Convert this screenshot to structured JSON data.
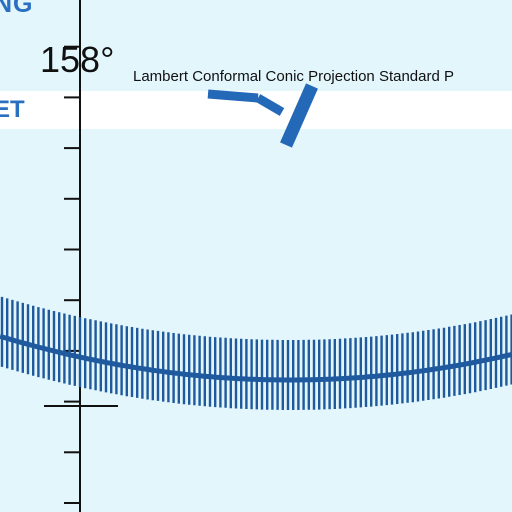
{
  "map": {
    "top_label": "NG",
    "band_label": "ET",
    "meridian_label": "158°",
    "projection_label": "Lambert Conformal Conic Projection Standard P"
  },
  "colors": {
    "background": "#e2f6fb",
    "band": "#ffffff",
    "boundary": "#1f5a9e",
    "route": "#2468b8",
    "meridian": "#111111",
    "label_blue": "#2a6fc0"
  },
  "icons": {
    "airway_route": "blue-route-segment",
    "boundary": "hatched-boundary-line"
  }
}
